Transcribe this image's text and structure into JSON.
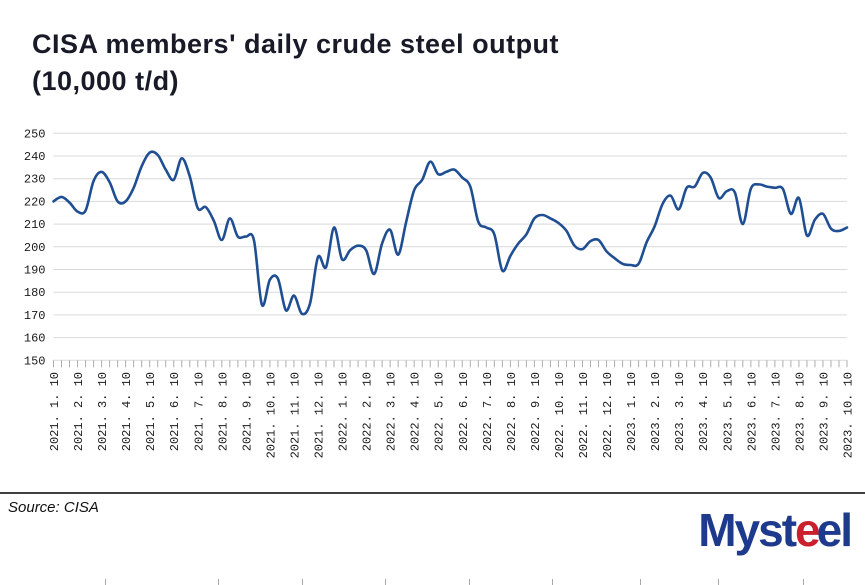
{
  "title": "CISA members' daily crude steel output (10,000 t/d)",
  "source_label": "Source: CISA",
  "logo": {
    "text": "Mysteel",
    "segments": [
      {
        "text": "Myst",
        "color": "#1e3a8c"
      },
      {
        "text": "e",
        "color": "#c9202e"
      },
      {
        "text": "e",
        "color": "#1e3a8c"
      },
      {
        "text": "l",
        "color": "#1e3a8c"
      }
    ]
  },
  "chart_data": {
    "type": "line",
    "title": "CISA members' daily crude steel output (10,000 t/d)",
    "ylim": [
      150,
      250
    ],
    "y_ticks": [
      250,
      240,
      230,
      220,
      210,
      200,
      190,
      180,
      170,
      160,
      150
    ],
    "x_labels": [
      "2021. 1. 10",
      "2021. 2. 10",
      "2021. 3. 10",
      "2021. 4. 10",
      "2021. 5. 10",
      "2021. 6. 10",
      "2021. 7. 10",
      "2021. 8. 10",
      "2021. 9. 10",
      "2021. 10. 10",
      "2021. 11. 10",
      "2021. 12. 10",
      "2022. 1. 10",
      "2022. 2. 10",
      "2022. 3. 10",
      "2022. 4. 10",
      "2022. 5. 10",
      "2022. 6. 10",
      "2022. 7. 10",
      "2022. 8. 10",
      "2022. 9. 10",
      "2022. 10. 10",
      "2022. 11. 10",
      "2022. 12. 10",
      "2023. 1. 10",
      "2023. 2. 10",
      "2023. 3. 10",
      "2023. 4. 10",
      "2023. 5. 10",
      "2023. 6. 10",
      "2023. 7. 10",
      "2023. 8. 10",
      "2023. 9. 10",
      "2023. 10. 10"
    ],
    "points_per_month": 3,
    "grid": true,
    "legend": false,
    "series": [
      {
        "name": "CISA members' daily crude steel output (10,000 t/d)",
        "color": "#1f4e93",
        "values": [
          220,
          222,
          219.5,
          215.5,
          216,
          229,
          233,
          228.5,
          220,
          220,
          226,
          235.5,
          241.5,
          240.5,
          234,
          229.5,
          239,
          231,
          217,
          217.5,
          211.5,
          203,
          212.5,
          204.5,
          204.5,
          203,
          174.5,
          185.5,
          186,
          172,
          178.5,
          170.5,
          175,
          195.5,
          191,
          208.5,
          194.5,
          198.5,
          200.5,
          198.5,
          188,
          201.5,
          207.5,
          196.5,
          211,
          225,
          229.5,
          237.5,
          232,
          233,
          234,
          230.5,
          226.5,
          211,
          208.5,
          205.5,
          189.5,
          196,
          201.5,
          205.5,
          212.5,
          214,
          212.5,
          210.5,
          207,
          200.5,
          199,
          202.5,
          203,
          198,
          195,
          192.5,
          192,
          192.5,
          202,
          209,
          219,
          222.5,
          216.5,
          226,
          226.5,
          232.5,
          230.5,
          221.5,
          224.5,
          224,
          210,
          225.5,
          227.5,
          226.5,
          226,
          225.5,
          214.5,
          221.5,
          205,
          212,
          214.5,
          208,
          207,
          208.5
        ]
      }
    ],
    "colors": {
      "line": "#1f4e93",
      "grid": "#d9d9d9",
      "axis_tick": "#adadad",
      "tick_label": "#1a1a1a"
    }
  }
}
